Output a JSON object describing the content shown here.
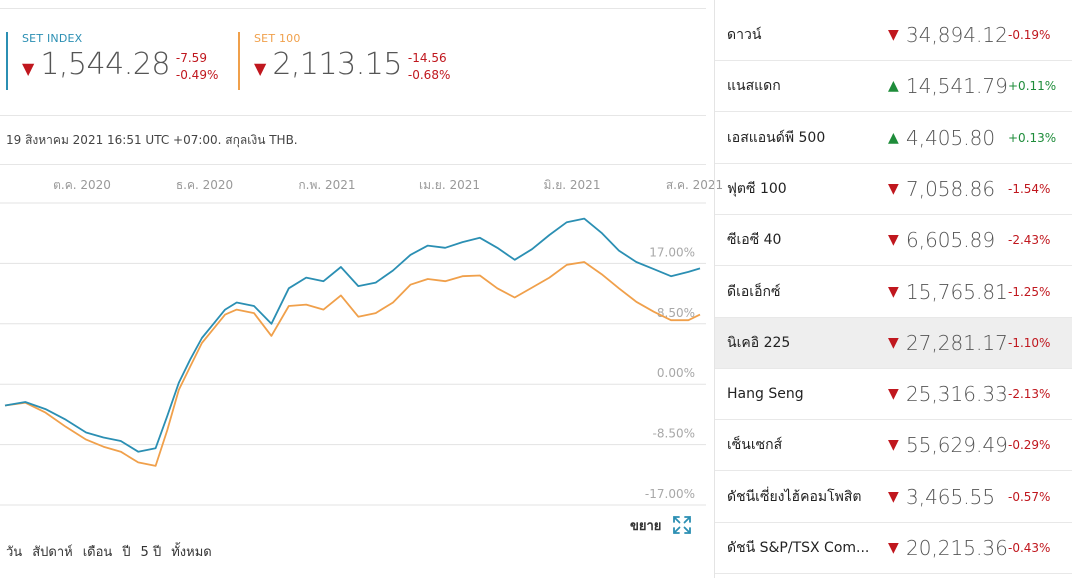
{
  "quotes": [
    {
      "name": "SET INDEX",
      "arrow": "▼",
      "value": "1,544.28",
      "change": "-7.59",
      "percent": "-0.49%",
      "color": "#2b8fb3"
    },
    {
      "name": "SET 100",
      "arrow": "▼",
      "value": "2,113.15",
      "change": "-14.56",
      "percent": "-0.68%",
      "color": "#f0a04b"
    }
  ],
  "as_of": "19 สิงหาคม 2021 16:51 UTC +07:00. สกุลเงิน THB.",
  "chart_data": {
    "type": "line",
    "x_tick_labels": [
      "ต.ค. 2020",
      "ธ.ค. 2020",
      "ก.พ. 2021",
      "เม.ย. 2021",
      "มิ.ย. 2021",
      "ส.ค. 2021"
    ],
    "y_tick_labels": [
      "17.00%",
      "8.50%",
      "0.00%",
      "-8.50%",
      "-17.00%"
    ],
    "y_ticks": [
      17,
      8.5,
      0,
      -8.5,
      -17
    ],
    "ylim": [
      -17,
      25.5
    ],
    "x_unit": "months since Sep 2020",
    "xlim": [
      0,
      12
    ],
    "grid": true,
    "series": [
      {
        "name": "SET INDEX",
        "color": "#2b8fb3",
        "x": [
          0,
          0.35,
          0.7,
          1.05,
          1.4,
          1.7,
          2.0,
          2.3,
          2.6,
          2.8,
          3.0,
          3.2,
          3.4,
          3.6,
          3.8,
          4.0,
          4.3,
          4.6,
          4.9,
          5.2,
          5.5,
          5.8,
          6.1,
          6.4,
          6.7,
          7.0,
          7.3,
          7.6,
          7.9,
          8.2,
          8.5,
          8.8,
          9.1,
          9.4,
          9.7,
          10.0,
          10.3,
          10.6,
          10.9,
          11.2,
          11.5,
          11.8,
          12.0
        ],
        "y": [
          -3.0,
          -2.5,
          -3.5,
          -5.0,
          -6.8,
          -7.5,
          -8.0,
          -9.5,
          -9.0,
          -4.5,
          0.2,
          3.5,
          6.5,
          8.5,
          10.5,
          11.5,
          11.0,
          8.5,
          13.5,
          15.0,
          14.5,
          16.5,
          13.8,
          14.3,
          16.0,
          18.2,
          19.5,
          19.2,
          20.0,
          20.6,
          19.2,
          17.5,
          19.0,
          21.0,
          22.8,
          23.3,
          21.3,
          18.8,
          17.2,
          16.2,
          15.2,
          15.8,
          16.3
        ]
      },
      {
        "name": "SET 100",
        "color": "#f0a04b",
        "x": [
          0,
          0.35,
          0.7,
          1.05,
          1.4,
          1.7,
          2.0,
          2.3,
          2.6,
          2.8,
          3.0,
          3.2,
          3.4,
          3.6,
          3.8,
          4.0,
          4.3,
          4.6,
          4.9,
          5.2,
          5.5,
          5.8,
          6.1,
          6.4,
          6.7,
          7.0,
          7.3,
          7.6,
          7.9,
          8.2,
          8.5,
          8.8,
          9.1,
          9.4,
          9.7,
          10.0,
          10.3,
          10.6,
          10.9,
          11.2,
          11.5,
          11.8,
          12.0
        ],
        "y": [
          -3.0,
          -2.6,
          -4.0,
          -6.0,
          -7.8,
          -8.8,
          -9.5,
          -11.0,
          -11.5,
          -6.5,
          -0.8,
          2.5,
          5.8,
          7.8,
          9.8,
          10.5,
          10.0,
          6.8,
          11.0,
          11.2,
          10.5,
          12.5,
          9.5,
          10.0,
          11.5,
          14.0,
          14.8,
          14.5,
          15.2,
          15.3,
          13.5,
          12.2,
          13.6,
          15.0,
          16.8,
          17.2,
          15.5,
          13.5,
          11.6,
          10.2,
          9.0,
          9.0,
          9.8
        ]
      }
    ]
  },
  "expand_label": "ขยาย",
  "ranges": [
    "วัน",
    "สัปดาห์",
    "เดือน",
    "ปี",
    "5 ปี",
    "ทั้งหมด"
  ],
  "indices": [
    {
      "name": "ดาวน์",
      "dir": "down",
      "arrow": "▼",
      "value": "34,894.12",
      "change": "-0.19%"
    },
    {
      "name": "แนสแดก",
      "dir": "up",
      "arrow": "▲",
      "value": "14,541.79",
      "change": "+0.11%"
    },
    {
      "name": "เอสแอนด์พี 500",
      "dir": "up",
      "arrow": "▲",
      "value": "4,405.80",
      "change": "+0.13%"
    },
    {
      "name": "ฟุตซี 100",
      "dir": "down",
      "arrow": "▼",
      "value": "7,058.86",
      "change": "-1.54%"
    },
    {
      "name": "ซีเอซี 40",
      "dir": "down",
      "arrow": "▼",
      "value": "6,605.89",
      "change": "-2.43%"
    },
    {
      "name": "ดีเอเอ็กซ์",
      "dir": "down",
      "arrow": "▼",
      "value": "15,765.81",
      "change": "-1.25%"
    },
    {
      "name": "นิเคอิ 225",
      "dir": "down",
      "arrow": "▼",
      "value": "27,281.17",
      "change": "-1.10%",
      "selected": true
    },
    {
      "name": "Hang Seng",
      "dir": "down",
      "arrow": "▼",
      "value": "25,316.33",
      "change": "-2.13%"
    },
    {
      "name": "เซ็นเซกส์",
      "dir": "down",
      "arrow": "▼",
      "value": "55,629.49",
      "change": "-0.29%"
    },
    {
      "name": "ดัชนีเซี่ยงไฮ้คอมโพสิต",
      "dir": "down",
      "arrow": "▼",
      "value": "3,465.55",
      "change": "-0.57%"
    },
    {
      "name": "ดัชนี S&P/TSX Com...",
      "dir": "down",
      "arrow": "▼",
      "value": "20,215.36",
      "change": "-0.43%"
    }
  ]
}
